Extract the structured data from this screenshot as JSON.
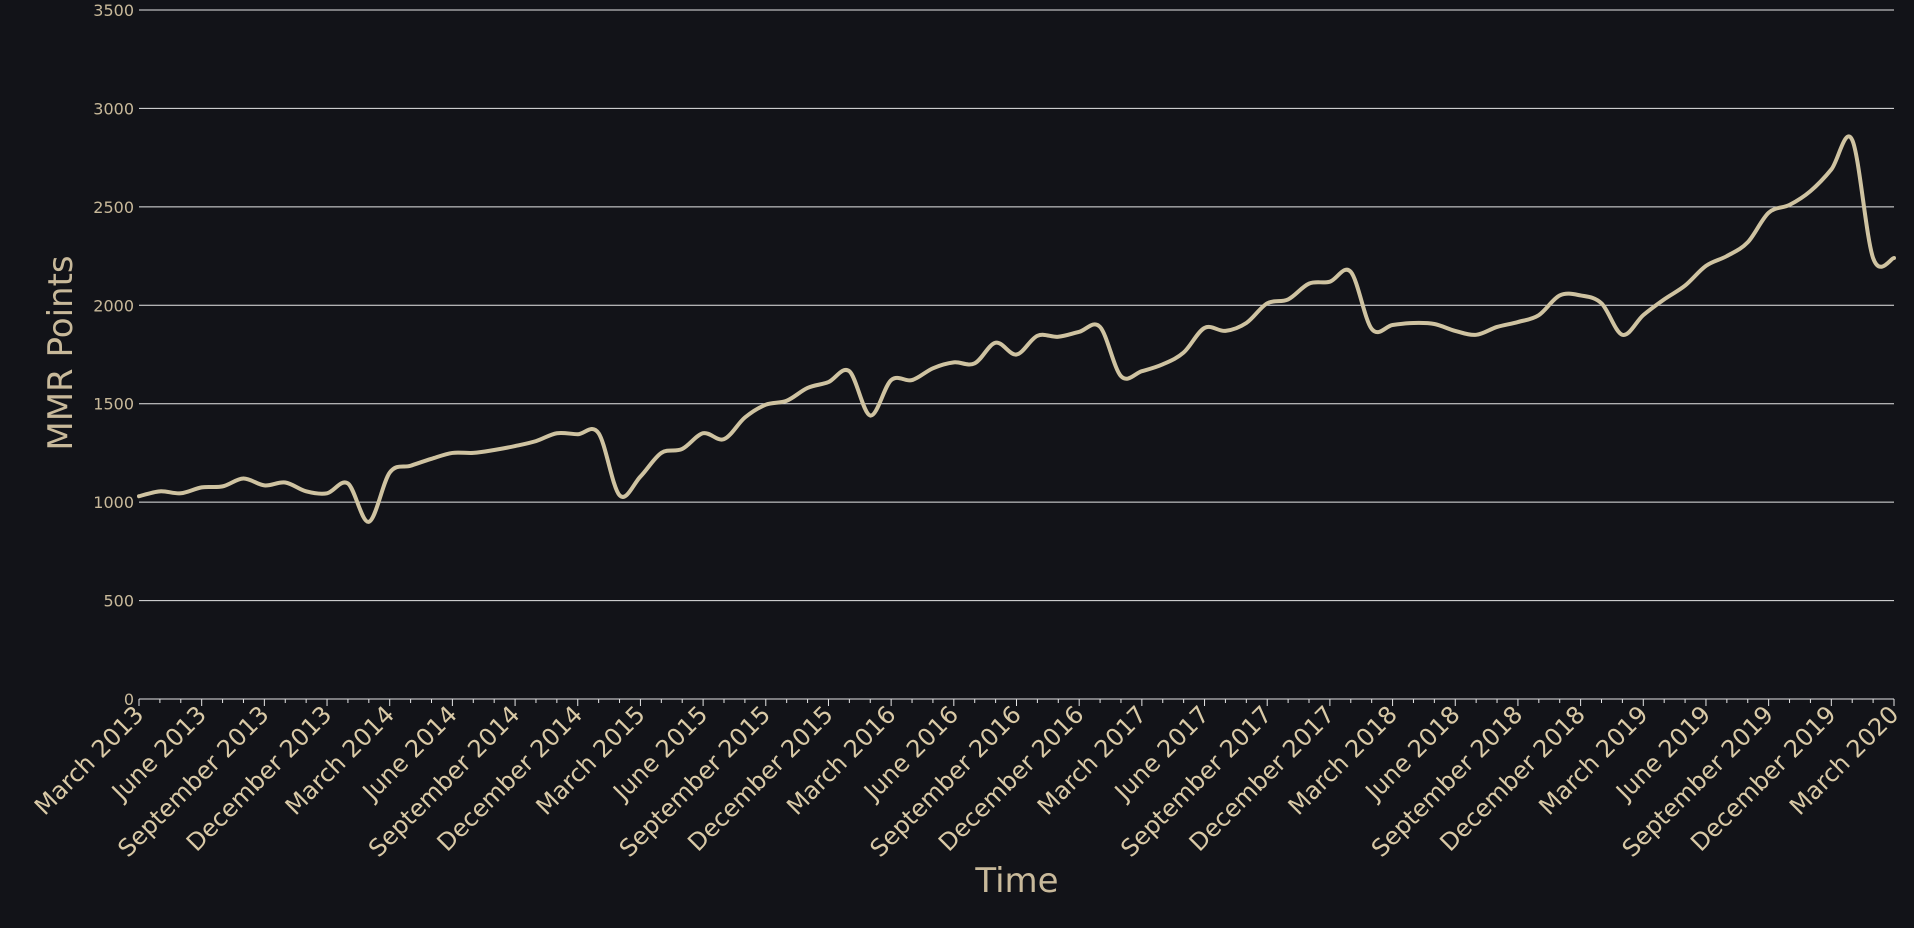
{
  "chart_data": {
    "type": "line",
    "xlabel": "Time",
    "ylabel": "MMR Points",
    "ylim": [
      0,
      3500
    ],
    "yticks": [
      0,
      500,
      1000,
      1500,
      2000,
      2500,
      3000,
      3500
    ],
    "grid": true,
    "line_color": "#cfc3a1",
    "background_color": "#121318",
    "x_tick_labels": [
      "March 2013",
      "June 2013",
      "September 2013",
      "December 2013",
      "March 2014",
      "June 2014",
      "September 2014",
      "December 2014",
      "March 2015",
      "June 2015",
      "September 2015",
      "December 2015",
      "March 2016",
      "June 2016",
      "September 2016",
      "December 2016",
      "March 2017",
      "June 2017",
      "September 2017",
      "December 2017",
      "March 2018",
      "June 2018",
      "September 2018",
      "December 2018",
      "March 2019",
      "June 2019",
      "September 2019",
      "December 2019",
      "March 2020"
    ],
    "series": [
      {
        "values": [
          1030,
          1055,
          1045,
          1075,
          1080,
          1120,
          1085,
          1100,
          1055,
          1045,
          1095,
          900,
          1150,
          1185,
          1220,
          1250,
          1250,
          1265,
          1285,
          1310,
          1350,
          1345,
          1350,
          1035,
          1130,
          1250,
          1270,
          1350,
          1320,
          1430,
          1495,
          1515,
          1580,
          1610,
          1665,
          1440,
          1620,
          1620,
          1680,
          1710,
          1705,
          1810,
          1750,
          1845,
          1840,
          1865,
          1890,
          1640,
          1665,
          1700,
          1760,
          1885,
          1870,
          1910,
          2010,
          2030,
          2110,
          2120,
          2170,
          1880,
          1900,
          1910,
          1905,
          1870,
          1850,
          1890,
          1915,
          1950,
          2050,
          2050,
          2010,
          1850,
          1950,
          2030,
          2100,
          2200,
          2250,
          2320,
          2470,
          2510,
          2580,
          2690,
          2840,
          2240,
          2240
        ]
      }
    ]
  }
}
